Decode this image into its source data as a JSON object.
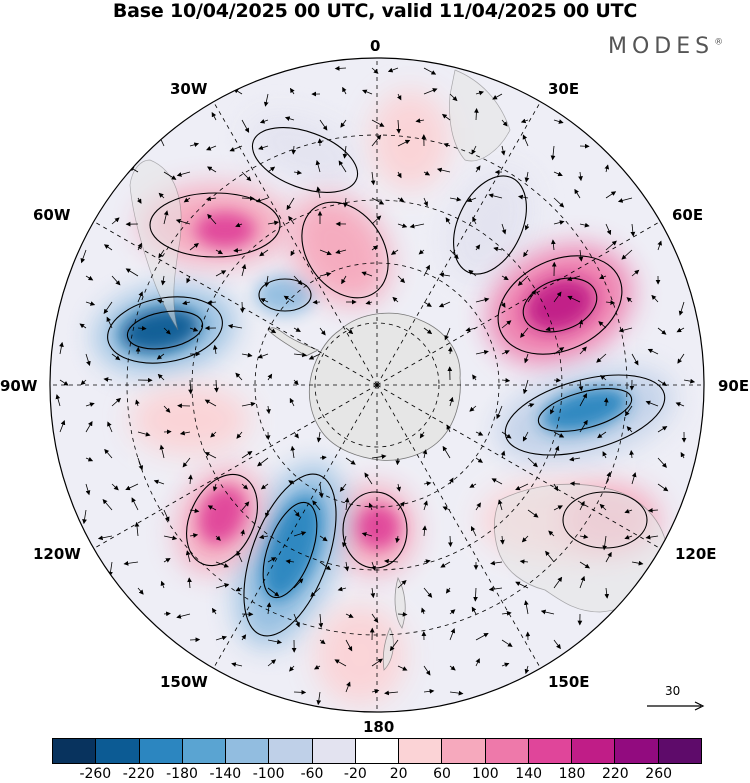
{
  "header": {
    "title": "Base 10/04/2025 00 UTC, valid 11/04/2025 00 UTC",
    "brand": "MODES"
  },
  "map": {
    "projection": "south-polar-stereographic",
    "longitude_labels": {
      "lon_0": "0",
      "lon_30e": "30E",
      "lon_60e": "60E",
      "lon_90e": "90E",
      "lon_120e": "120E",
      "lon_150e": "150E",
      "lon_180": "180",
      "lon_150w": "150W",
      "lon_120w": "120W",
      "lon_90w": "90W",
      "lon_60w": "60W",
      "lon_30w": "30W"
    },
    "grid": "dashed meridians and latitude circles",
    "land_color": "#e6e6e6",
    "anomalies": [
      {
        "region": "south-atlantic-west",
        "value": -220
      },
      {
        "region": "south-atlantic-north",
        "value": -100
      },
      {
        "region": "south-america-east",
        "value": 180
      },
      {
        "region": "south-atlantic-central",
        "value": 140
      },
      {
        "region": "south-africa-south",
        "value": 60
      },
      {
        "region": "indian-ocean-west",
        "value": -80
      },
      {
        "region": "indian-ocean-central",
        "value": 220
      },
      {
        "region": "indian-ocean-east",
        "value": -180
      },
      {
        "region": "australia-southwest",
        "value": 100
      },
      {
        "region": "australia-south",
        "value": 140
      },
      {
        "region": "pacific-ross-sea",
        "value": 160
      },
      {
        "region": "pacific-south",
        "value": -200
      },
      {
        "region": "pacific-east",
        "value": 160
      },
      {
        "region": "amundsen-sea",
        "value": 100
      },
      {
        "region": "bellingshausen-sea",
        "value": 60
      }
    ]
  },
  "colorbar": {
    "colors": [
      "#08335e",
      "#0c5b94",
      "#2c86c0",
      "#5aa4d2",
      "#92bde0",
      "#bfd0e8",
      "#e3e3f0",
      "#ffffff",
      "#fbd3d6",
      "#f6a9bd",
      "#ee79aa",
      "#e0459a",
      "#c01d87",
      "#920b7f",
      "#5e0b6a"
    ],
    "tick_labels": [
      "-260",
      "-220",
      "-180",
      "-140",
      "-100",
      "-60",
      "-20",
      "20",
      "60",
      "100",
      "140",
      "180",
      "220",
      "260"
    ]
  },
  "reference_vector": {
    "value": "30"
  }
}
